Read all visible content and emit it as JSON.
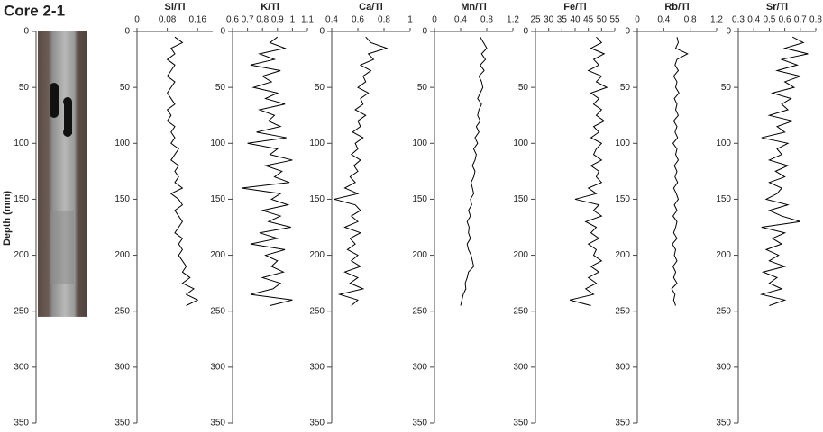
{
  "chart_data": [
    {
      "type": "image",
      "title": "Core 2-1",
      "ylabel": "Depth (mm)",
      "ylim": [
        0,
        350
      ],
      "yticks": [
        0,
        50,
        100,
        150,
        200,
        250,
        300,
        350
      ],
      "y_inverted": true
    },
    {
      "type": "line",
      "title": "Si/Ti",
      "xlim": [
        0,
        0.2
      ],
      "xticks": [
        0,
        0.08,
        0.16
      ],
      "ylim": [
        0,
        350
      ],
      "yticks": [
        0,
        50,
        100,
        150,
        200,
        250,
        300,
        350
      ],
      "y_inverted": true,
      "series": [
        {
          "color": "#000000",
          "depth": [
            5,
            10,
            15,
            20,
            25,
            30,
            35,
            40,
            45,
            50,
            55,
            60,
            65,
            70,
            75,
            80,
            85,
            90,
            95,
            100,
            105,
            110,
            115,
            120,
            125,
            130,
            135,
            140,
            145,
            150,
            155,
            160,
            165,
            170,
            175,
            180,
            185,
            190,
            195,
            200,
            205,
            210,
            215,
            220,
            225,
            230,
            235,
            240,
            245
          ],
          "values": [
            0.1,
            0.12,
            0.09,
            0.1,
            0.08,
            0.1,
            0.09,
            0.08,
            0.1,
            0.09,
            0.08,
            0.09,
            0.1,
            0.08,
            0.09,
            0.08,
            0.1,
            0.09,
            0.1,
            0.09,
            0.11,
            0.1,
            0.09,
            0.11,
            0.1,
            0.11,
            0.1,
            0.12,
            0.09,
            0.11,
            0.12,
            0.1,
            0.11,
            0.12,
            0.11,
            0.1,
            0.12,
            0.11,
            0.12,
            0.11,
            0.12,
            0.13,
            0.12,
            0.14,
            0.12,
            0.15,
            0.13,
            0.16,
            0.13
          ]
        }
      ]
    },
    {
      "type": "line",
      "title": "K/Ti",
      "xlim": [
        0.6,
        1.1
      ],
      "xticks": [
        0.6,
        0.7,
        0.8,
        0.9,
        1,
        1.1
      ],
      "ylim": [
        0,
        350
      ],
      "yticks": [
        0,
        50,
        100,
        150,
        200,
        250,
        300,
        350
      ],
      "y_inverted": true,
      "series": [
        {
          "color": "#000000",
          "depth": [
            5,
            10,
            15,
            20,
            25,
            30,
            35,
            40,
            45,
            50,
            55,
            60,
            65,
            70,
            75,
            80,
            85,
            90,
            95,
            100,
            105,
            110,
            115,
            120,
            125,
            130,
            135,
            140,
            145,
            150,
            155,
            160,
            165,
            170,
            175,
            180,
            185,
            190,
            195,
            200,
            205,
            210,
            215,
            220,
            225,
            230,
            235,
            240,
            245
          ],
          "values": [
            0.9,
            0.85,
            0.95,
            0.78,
            0.88,
            0.72,
            0.92,
            0.8,
            0.86,
            0.74,
            0.9,
            0.82,
            0.95,
            0.78,
            0.88,
            0.84,
            0.92,
            0.76,
            0.96,
            0.7,
            0.9,
            0.85,
            1.0,
            0.82,
            0.93,
            0.88,
            0.98,
            0.66,
            0.92,
            0.86,
            0.97,
            0.8,
            0.92,
            0.84,
            0.99,
            0.78,
            0.9,
            0.72,
            0.95,
            0.82,
            0.9,
            0.86,
            0.94,
            0.8,
            0.92,
            0.87,
            0.72,
            1.0,
            0.85
          ]
        }
      ]
    },
    {
      "type": "line",
      "title": "Ca/Ti",
      "xlim": [
        0.4,
        1
      ],
      "xticks": [
        0.4,
        0.6,
        0.8,
        1
      ],
      "ylim": [
        0,
        350
      ],
      "yticks": [
        0,
        50,
        100,
        150,
        200,
        250,
        300,
        350
      ],
      "y_inverted": true,
      "series": [
        {
          "color": "#000000",
          "depth": [
            5,
            10,
            15,
            20,
            25,
            30,
            35,
            40,
            45,
            50,
            55,
            60,
            65,
            70,
            75,
            80,
            85,
            90,
            95,
            100,
            105,
            110,
            115,
            120,
            125,
            130,
            135,
            140,
            145,
            150,
            155,
            160,
            165,
            170,
            175,
            180,
            185,
            190,
            195,
            200,
            205,
            210,
            215,
            220,
            225,
            230,
            235,
            240,
            245
          ],
          "values": [
            0.66,
            0.7,
            0.82,
            0.68,
            0.72,
            0.62,
            0.7,
            0.64,
            0.66,
            0.6,
            0.68,
            0.62,
            0.64,
            0.58,
            0.66,
            0.6,
            0.62,
            0.56,
            0.64,
            0.58,
            0.6,
            0.55,
            0.62,
            0.57,
            0.6,
            0.54,
            0.58,
            0.5,
            0.6,
            0.42,
            0.58,
            0.62,
            0.55,
            0.6,
            0.5,
            0.62,
            0.54,
            0.58,
            0.52,
            0.6,
            0.55,
            0.62,
            0.5,
            0.6,
            0.54,
            0.64,
            0.46,
            0.6,
            0.55
          ]
        }
      ]
    },
    {
      "type": "line",
      "title": "Mn/Ti",
      "xlim": [
        0,
        1.2
      ],
      "xticks": [
        0,
        0.4,
        0.8,
        1.2
      ],
      "ylim": [
        0,
        350
      ],
      "yticks": [
        0,
        50,
        100,
        150,
        200,
        250,
        300,
        350
      ],
      "y_inverted": true,
      "series": [
        {
          "color": "#000000",
          "depth": [
            5,
            10,
            15,
            20,
            25,
            30,
            35,
            40,
            45,
            50,
            55,
            60,
            65,
            70,
            75,
            80,
            85,
            90,
            95,
            100,
            105,
            110,
            115,
            120,
            125,
            130,
            135,
            140,
            145,
            150,
            155,
            160,
            165,
            170,
            175,
            180,
            185,
            190,
            195,
            200,
            205,
            210,
            215,
            220,
            225,
            230,
            235,
            240,
            245
          ],
          "values": [
            0.7,
            0.75,
            0.8,
            0.72,
            0.78,
            0.7,
            0.76,
            0.68,
            0.72,
            0.74,
            0.7,
            0.66,
            0.72,
            0.68,
            0.66,
            0.7,
            0.64,
            0.68,
            0.62,
            0.66,
            0.6,
            0.64,
            0.62,
            0.58,
            0.62,
            0.6,
            0.56,
            0.58,
            0.6,
            0.55,
            0.57,
            0.52,
            0.55,
            0.5,
            0.53,
            0.52,
            0.55,
            0.5,
            0.52,
            0.56,
            0.58,
            0.6,
            0.52,
            0.5,
            0.47,
            0.48,
            0.44,
            0.42,
            0.4
          ]
        }
      ]
    },
    {
      "type": "line",
      "title": "Fe/Ti",
      "xlim": [
        25,
        55
      ],
      "xticks": [
        25,
        30,
        35,
        40,
        45,
        50,
        55
      ],
      "ylim": [
        0,
        350
      ],
      "yticks": [
        0,
        50,
        100,
        150,
        200,
        250,
        300,
        350
      ],
      "y_inverted": true,
      "series": [
        {
          "color": "#000000",
          "depth": [
            5,
            10,
            15,
            20,
            25,
            30,
            35,
            40,
            45,
            50,
            55,
            60,
            65,
            70,
            75,
            80,
            85,
            90,
            95,
            100,
            105,
            110,
            115,
            120,
            125,
            130,
            135,
            140,
            145,
            150,
            155,
            160,
            165,
            170,
            175,
            180,
            185,
            190,
            195,
            200,
            205,
            210,
            215,
            220,
            225,
            230,
            235,
            240,
            245
          ],
          "values": [
            48,
            50,
            46,
            51,
            47,
            49,
            45,
            50,
            48,
            52,
            46,
            49,
            47,
            50,
            48,
            51,
            47,
            49,
            46,
            50,
            48,
            47,
            50,
            46,
            49,
            48,
            50,
            45,
            48,
            40,
            49,
            47,
            50,
            44,
            48,
            46,
            49,
            45,
            48,
            47,
            50,
            46,
            49,
            45,
            48,
            44,
            47,
            38,
            46
          ]
        }
      ]
    },
    {
      "type": "line",
      "title": "Rb/Ti",
      "xlim": [
        0,
        1.2
      ],
      "xticks": [
        0,
        0.4,
        0.8,
        1.2
      ],
      "ylim": [
        0,
        350
      ],
      "yticks": [
        0,
        50,
        100,
        150,
        200,
        250,
        300,
        350
      ],
      "y_inverted": true,
      "series": [
        {
          "color": "#000000",
          "depth": [
            5,
            10,
            15,
            20,
            25,
            30,
            35,
            40,
            45,
            50,
            55,
            60,
            65,
            70,
            75,
            80,
            85,
            90,
            95,
            100,
            105,
            110,
            115,
            120,
            125,
            130,
            135,
            140,
            145,
            150,
            155,
            160,
            165,
            170,
            175,
            180,
            185,
            190,
            195,
            200,
            205,
            210,
            215,
            220,
            225,
            230,
            235,
            240,
            245
          ],
          "values": [
            0.6,
            0.62,
            0.58,
            0.76,
            0.6,
            0.57,
            0.62,
            0.55,
            0.6,
            0.58,
            0.63,
            0.56,
            0.6,
            0.58,
            0.62,
            0.55,
            0.6,
            0.57,
            0.61,
            0.54,
            0.6,
            0.58,
            0.62,
            0.56,
            0.6,
            0.57,
            0.61,
            0.55,
            0.59,
            0.62,
            0.56,
            0.6,
            0.54,
            0.6,
            0.58,
            0.55,
            0.6,
            0.53,
            0.58,
            0.56,
            0.6,
            0.54,
            0.58,
            0.55,
            0.6,
            0.52,
            0.57,
            0.55,
            0.58
          ]
        }
      ]
    },
    {
      "type": "line",
      "title": "Sr/Ti",
      "xlim": [
        0.3,
        0.8
      ],
      "xticks": [
        0.3,
        0.4,
        0.5,
        0.6,
        0.7,
        0.8
      ],
      "ylim": [
        0,
        350
      ],
      "yticks": [
        0,
        50,
        100,
        150,
        200,
        250,
        300,
        350
      ],
      "y_inverted": true,
      "series": [
        {
          "color": "#000000",
          "depth": [
            5,
            10,
            15,
            20,
            25,
            30,
            35,
            40,
            45,
            50,
            55,
            60,
            65,
            70,
            75,
            80,
            85,
            90,
            95,
            100,
            105,
            110,
            115,
            120,
            125,
            130,
            135,
            140,
            145,
            150,
            155,
            160,
            165,
            170,
            175,
            180,
            185,
            190,
            195,
            200,
            205,
            210,
            215,
            220,
            225,
            230,
            235,
            240,
            245
          ],
          "values": [
            0.65,
            0.72,
            0.6,
            0.75,
            0.58,
            0.68,
            0.55,
            0.7,
            0.6,
            0.66,
            0.52,
            0.64,
            0.58,
            0.62,
            0.5,
            0.65,
            0.55,
            0.6,
            0.45,
            0.62,
            0.55,
            0.58,
            0.5,
            0.62,
            0.54,
            0.6,
            0.5,
            0.58,
            0.55,
            0.48,
            0.62,
            0.5,
            0.58,
            0.7,
            0.45,
            0.6,
            0.52,
            0.58,
            0.48,
            0.56,
            0.5,
            0.6,
            0.46,
            0.55,
            0.5,
            0.58,
            0.45,
            0.6,
            0.5
          ]
        }
      ]
    }
  ]
}
